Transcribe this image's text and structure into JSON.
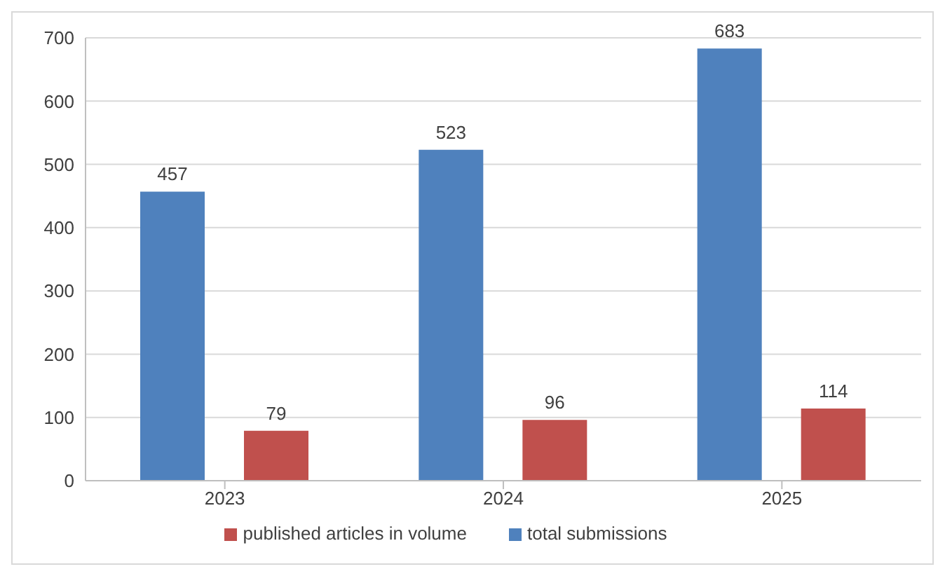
{
  "chart_data": {
    "type": "bar",
    "categories": [
      "2023",
      "2024",
      "2025"
    ],
    "series": [
      {
        "name": "total submissions",
        "color": "#4f81bd",
        "values": [
          457,
          523,
          683
        ]
      },
      {
        "name": "published articles in volume",
        "color": "#c0504d",
        "values": [
          79,
          96,
          114
        ]
      }
    ],
    "ylim": [
      0,
      700
    ],
    "yticks": [
      0,
      100,
      200,
      300,
      400,
      500,
      600,
      700
    ],
    "grid": "y",
    "legend": "bottom",
    "data_labels": true
  }
}
